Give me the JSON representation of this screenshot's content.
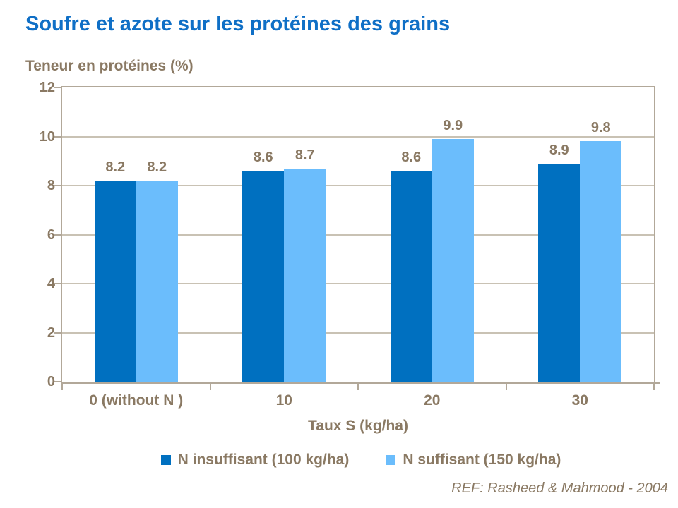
{
  "page": {
    "reference": "REF: Rasheed & Mahmood - 2004"
  },
  "chart_data": {
    "type": "bar",
    "title": "Soufre et azote sur les protéines des grains",
    "ylabel": "Teneur en protéines (%)",
    "xlabel": "Taux S (kg/ha)",
    "categories": [
      "0 (without N )",
      "10",
      "20",
      "30"
    ],
    "series": [
      {
        "name": "N insuffisant (100 kg/ha)",
        "color": "#0070C0",
        "values": [
          8.2,
          8.6,
          8.6,
          8.9
        ]
      },
      {
        "name": "N suffisant (150 kg/ha)",
        "color": "#6BBDFC",
        "values": [
          8.2,
          8.7,
          9.9,
          9.8
        ]
      }
    ],
    "ylim": [
      0,
      12
    ],
    "ytick_step": 2,
    "grid": true,
    "data_labels": true,
    "legend_position": "bottom"
  },
  "colors": {
    "title": "#0F6FC6",
    "text": "#8A7963",
    "axis": "#B2A899",
    "gridline": "#C9C2B4",
    "background": "#FFFFFF"
  }
}
